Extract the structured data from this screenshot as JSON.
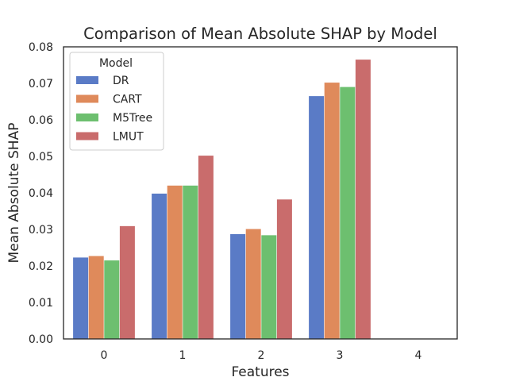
{
  "chart_data": {
    "type": "bar",
    "title": "Comparison of Mean Absolute SHAP by Model",
    "xlabel": "Features",
    "ylabel": "Mean Absolute SHAP",
    "categories": [
      "0",
      "1",
      "2",
      "3",
      "4"
    ],
    "ylim": [
      0,
      0.08
    ],
    "yticks": [
      "0.00",
      "0.01",
      "0.02",
      "0.03",
      "0.04",
      "0.05",
      "0.06",
      "0.07",
      "0.08"
    ],
    "grid": false,
    "legend": {
      "title": "Model",
      "position": "upper-left"
    },
    "series": [
      {
        "name": "DR",
        "color": "#5a7bc6",
        "values": [
          0.0223,
          0.0398,
          0.0287,
          0.0665,
          null
        ]
      },
      {
        "name": "CART",
        "color": "#df8a5b",
        "values": [
          0.0227,
          0.042,
          0.0301,
          0.0702,
          null
        ]
      },
      {
        "name": "M5Tree",
        "color": "#6dbf6f",
        "values": [
          0.0215,
          0.042,
          0.0284,
          0.069,
          null
        ]
      },
      {
        "name": "LMUT",
        "color": "#c96c6c",
        "values": [
          0.0309,
          0.0502,
          0.0382,
          0.0765,
          null
        ]
      }
    ]
  }
}
